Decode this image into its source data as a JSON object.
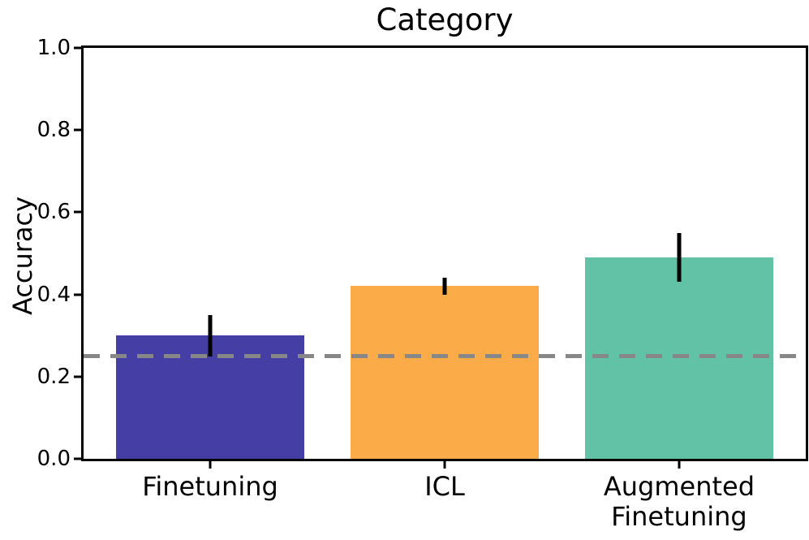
{
  "chart_data": {
    "type": "bar",
    "title": "Category",
    "xlabel": "",
    "ylabel": "Accuracy",
    "categories": [
      "Finetuning",
      "ICL",
      "Augmented\nFinetuning"
    ],
    "values": [
      0.3,
      0.42,
      0.49
    ],
    "error_bars": [
      0.05,
      0.02,
      0.06
    ],
    "bar_colors": [
      "#453fa5",
      "#fbac49",
      "#61c2a5"
    ],
    "error_bar_color": "#000000",
    "reference_line": {
      "y": 0.25,
      "style": "dashed",
      "color": "#878787"
    },
    "ylim": [
      0.0,
      1.0
    ],
    "yticks": [
      "0.0",
      "0.2",
      "0.4",
      "0.6",
      "0.8",
      "1.0"
    ],
    "grid": false,
    "legend": false,
    "axis_color": "#000000",
    "background_color": "#ffffff"
  }
}
